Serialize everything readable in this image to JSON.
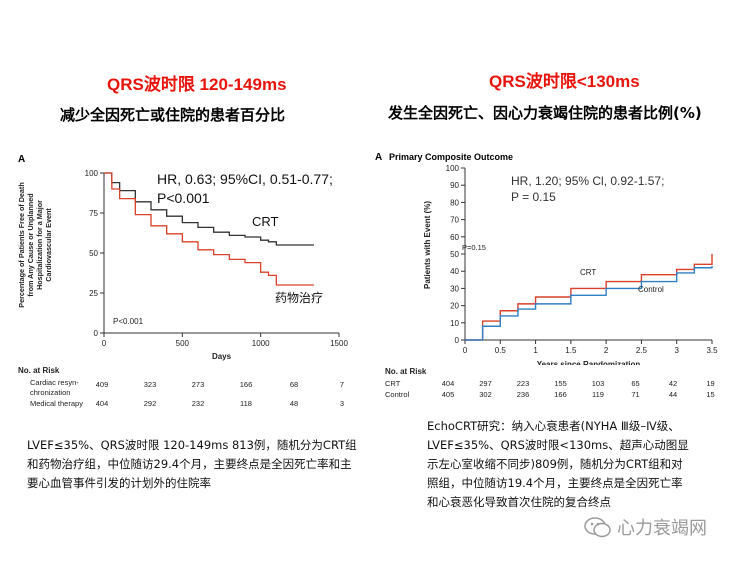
{
  "left": {
    "red_title": "QRS波时限 120-149ms",
    "subtitle": "减少全因死亡或住院的患者百分比",
    "panel_letter": "A",
    "description": "LVEF≤35%、QRS波时限 120-149ms 813例，随机分为CRT组和药物治疗组，中位随访29.4个月，主要终点是全因死亡率和主要心血管事件引发的计划外的住院率",
    "risk_table": {
      "title": "No. at Risk",
      "rows": [
        {
          "label": "Cardiac resyn-",
          "label2": "chronization",
          "values": [
            "409",
            "323",
            "273",
            "166",
            "68",
            "7"
          ]
        },
        {
          "label": "Medical therapy",
          "values": [
            "404",
            "292",
            "232",
            "118",
            "48",
            "3"
          ]
        }
      ]
    }
  },
  "right": {
    "red_title": "QRS波时限<130ms",
    "subtitle": "发生全因死亡、因心力衰竭住院的患者比例(%)",
    "panel_letter": "A",
    "panel_title": "Primary Composite Outcome",
    "description_lines": [
      "EchoCRT研究：纳入心衰患者(NYHA Ⅲ级–Ⅳ级、",
      "LVEF≤35%、QRS波时限<130ms、超声心动图显",
      "示左心室收缩不同步)809例，随机分为CRT组和对",
      "照组，中位随访19.4个月，主要终点是全因死亡率",
      "和心衰恶化导致首次住院的复合终点"
    ],
    "risk_table": {
      "title": "No. at Risk",
      "rows": [
        {
          "label": "CRT",
          "values": [
            "404",
            "297",
            "223",
            "155",
            "103",
            "65",
            "42",
            "19"
          ]
        },
        {
          "label": "Control",
          "values": [
            "405",
            "302",
            "236",
            "166",
            "119",
            "71",
            "44",
            "15"
          ]
        }
      ]
    }
  },
  "watermark": {
    "text": "心力衰竭网"
  },
  "chart_data": [
    {
      "type": "line",
      "title": "",
      "xlabel": "Days",
      "ylabel": "Percentage of Patients Free of Death from Any Cause or Unplanned Hospitalization for a Major Cardiovascular Event",
      "xlim": [
        0,
        1500
      ],
      "ylim": [
        0,
        100
      ],
      "xticks": [
        0,
        500,
        1000,
        1500
      ],
      "yticks": [
        0,
        25,
        50,
        75,
        100
      ],
      "annotations": [
        "HR, 0.63; 95%CI, 0.51-0.77;",
        "P<0.001",
        "P<0.001"
      ],
      "series": [
        {
          "name": "CRT",
          "x": [
            0,
            50,
            100,
            200,
            300,
            400,
            500,
            600,
            700,
            800,
            900,
            1000,
            1050,
            1100,
            1200,
            1340
          ],
          "values": [
            100,
            94,
            89,
            82,
            77,
            73,
            69,
            66,
            63,
            61,
            60,
            58,
            57,
            55,
            55,
            55
          ]
        },
        {
          "name": "药物治疗",
          "x": [
            0,
            50,
            100,
            200,
            300,
            400,
            500,
            600,
            700,
            800,
            900,
            1000,
            1050,
            1100,
            1200,
            1340
          ],
          "values": [
            100,
            90,
            84,
            74,
            67,
            62,
            57,
            52,
            49,
            46,
            44,
            38,
            36,
            30,
            30,
            30
          ]
        }
      ]
    },
    {
      "type": "line",
      "title": "Primary Composite Outcome",
      "xlabel": "Years since Randomization",
      "ylabel": "Patients with Event (%)",
      "xlim": [
        0,
        3.5
      ],
      "ylim": [
        0,
        100
      ],
      "xticks": [
        0,
        0.5,
        1,
        1.5,
        2,
        2.5,
        3,
        3.5
      ],
      "yticks": [
        0,
        10,
        20,
        30,
        40,
        50,
        60,
        70,
        80,
        90,
        100
      ],
      "annotations": [
        "HR, 1.20; 95% Cl, 0.92-1.57;",
        "P = 0.15",
        "P=0.15"
      ],
      "series": [
        {
          "name": "CRT",
          "x": [
            0,
            0.25,
            0.5,
            0.75,
            1.0,
            1.5,
            2.0,
            2.5,
            3.0,
            3.25,
            3.5
          ],
          "values": [
            0,
            11,
            17,
            21,
            25,
            30,
            34,
            38,
            41,
            44,
            50
          ]
        },
        {
          "name": "Control",
          "x": [
            0,
            0.25,
            0.5,
            0.75,
            1.0,
            1.5,
            2.0,
            2.5,
            3.0,
            3.25,
            3.5
          ],
          "values": [
            0,
            8,
            14,
            18,
            21,
            26,
            30,
            34,
            39,
            42,
            43
          ]
        }
      ]
    }
  ]
}
